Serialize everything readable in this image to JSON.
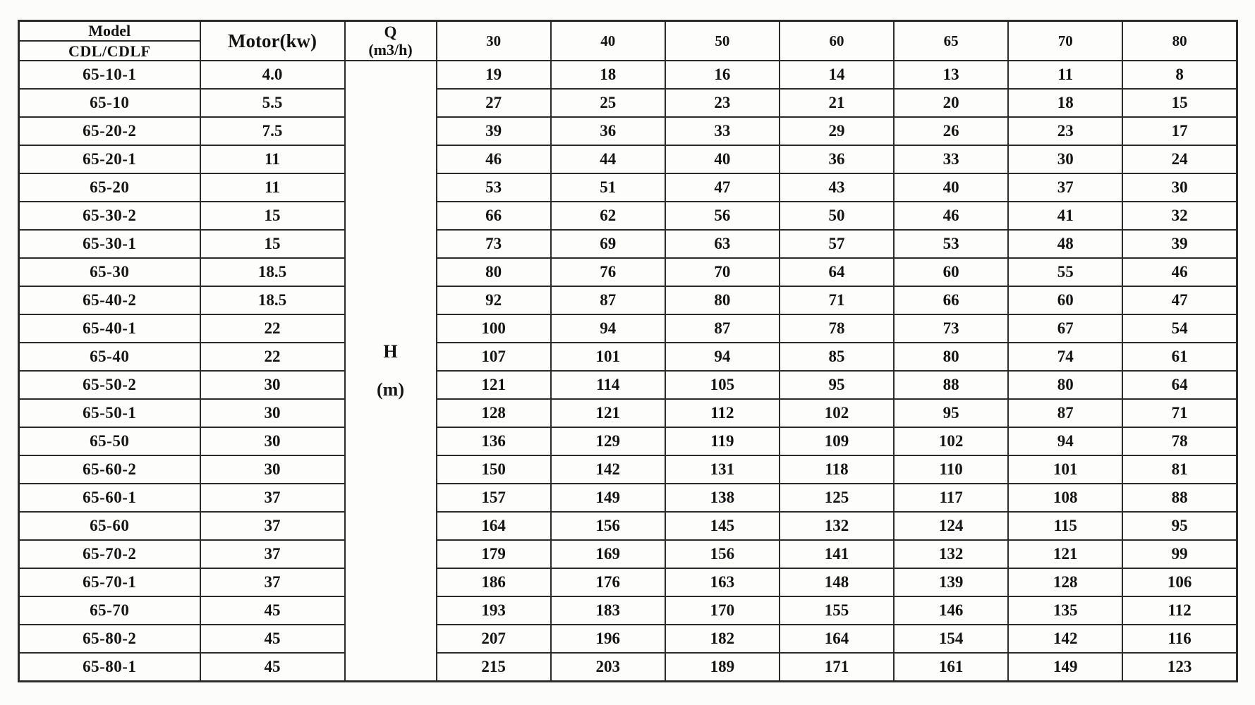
{
  "table": {
    "header": {
      "model_label": "Model",
      "model_sub_label": "CDL/CDLF",
      "motor_label": "Motor(kw)",
      "q_label": "Q",
      "q_unit_label": "(m3/h)",
      "flow_columns": [
        "30",
        "40",
        "50",
        "60",
        "65",
        "70",
        "80"
      ]
    },
    "h_cell": {
      "line1": "H",
      "line2": "(m)"
    },
    "rows": [
      {
        "model": "65-10-1",
        "motor": "4.0",
        "values": [
          "19",
          "18",
          "16",
          "14",
          "13",
          "11",
          "8"
        ]
      },
      {
        "model": "65-10",
        "motor": "5.5",
        "values": [
          "27",
          "25",
          "23",
          "21",
          "20",
          "18",
          "15"
        ]
      },
      {
        "model": "65-20-2",
        "motor": "7.5",
        "values": [
          "39",
          "36",
          "33",
          "29",
          "26",
          "23",
          "17"
        ]
      },
      {
        "model": "65-20-1",
        "motor": "11",
        "values": [
          "46",
          "44",
          "40",
          "36",
          "33",
          "30",
          "24"
        ]
      },
      {
        "model": "65-20",
        "motor": "11",
        "values": [
          "53",
          "51",
          "47",
          "43",
          "40",
          "37",
          "30"
        ]
      },
      {
        "model": "65-30-2",
        "motor": "15",
        "values": [
          "66",
          "62",
          "56",
          "50",
          "46",
          "41",
          "32"
        ]
      },
      {
        "model": "65-30-1",
        "motor": "15",
        "values": [
          "73",
          "69",
          "63",
          "57",
          "53",
          "48",
          "39"
        ]
      },
      {
        "model": "65-30",
        "motor": "18.5",
        "values": [
          "80",
          "76",
          "70",
          "64",
          "60",
          "55",
          "46"
        ]
      },
      {
        "model": "65-40-2",
        "motor": "18.5",
        "values": [
          "92",
          "87",
          "80",
          "71",
          "66",
          "60",
          "47"
        ]
      },
      {
        "model": "65-40-1",
        "motor": "22",
        "values": [
          "100",
          "94",
          "87",
          "78",
          "73",
          "67",
          "54"
        ]
      },
      {
        "model": "65-40",
        "motor": "22",
        "values": [
          "107",
          "101",
          "94",
          "85",
          "80",
          "74",
          "61"
        ]
      },
      {
        "model": "65-50-2",
        "motor": "30",
        "values": [
          "121",
          "114",
          "105",
          "95",
          "88",
          "80",
          "64"
        ]
      },
      {
        "model": "65-50-1",
        "motor": "30",
        "values": [
          "128",
          "121",
          "112",
          "102",
          "95",
          "87",
          "71"
        ]
      },
      {
        "model": "65-50",
        "motor": "30",
        "values": [
          "136",
          "129",
          "119",
          "109",
          "102",
          "94",
          "78"
        ]
      },
      {
        "model": "65-60-2",
        "motor": "30",
        "values": [
          "150",
          "142",
          "131",
          "118",
          "110",
          "101",
          "81"
        ]
      },
      {
        "model": "65-60-1",
        "motor": "37",
        "values": [
          "157",
          "149",
          "138",
          "125",
          "117",
          "108",
          "88"
        ]
      },
      {
        "model": "65-60",
        "motor": "37",
        "values": [
          "164",
          "156",
          "145",
          "132",
          "124",
          "115",
          "95"
        ]
      },
      {
        "model": "65-70-2",
        "motor": "37",
        "values": [
          "179",
          "169",
          "156",
          "141",
          "132",
          "121",
          "99"
        ]
      },
      {
        "model": "65-70-1",
        "motor": "37",
        "values": [
          "186",
          "176",
          "163",
          "148",
          "139",
          "128",
          "106"
        ]
      },
      {
        "model": "65-70",
        "motor": "45",
        "values": [
          "193",
          "183",
          "170",
          "155",
          "146",
          "135",
          "112"
        ]
      },
      {
        "model": "65-80-2",
        "motor": "45",
        "values": [
          "207",
          "196",
          "182",
          "164",
          "154",
          "142",
          "116"
        ]
      },
      {
        "model": "65-80-1",
        "motor": "45",
        "values": [
          "215",
          "203",
          "189",
          "171",
          "161",
          "149",
          "123"
        ]
      }
    ]
  }
}
